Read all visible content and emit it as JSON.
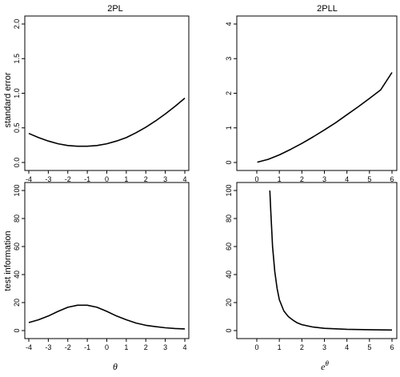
{
  "figure": {
    "columns": [
      "2PL",
      "2PLL"
    ],
    "rows": [
      "standard error",
      "test information"
    ],
    "xlabels": [
      {
        "base": "θ",
        "sup": ""
      },
      {
        "base": "e",
        "sup": "θ"
      }
    ]
  },
  "chart_data": [
    {
      "type": "line",
      "column": "2PL",
      "row": "standard error",
      "title": "2PL",
      "ylabel": "standard error",
      "xlabel": "θ",
      "xlim": [
        -4,
        4
      ],
      "ylim": [
        0,
        2
      ],
      "xticks": [
        -4,
        -3,
        -2,
        -1,
        0,
        1,
        2,
        3,
        4
      ],
      "yticks": [
        0.0,
        0.5,
        1.0,
        1.5,
        2.0
      ],
      "ytick_labels": [
        "0.0",
        "0.5",
        "1.0",
        "1.5",
        "2.0"
      ],
      "series": [
        {
          "x": [
            -4,
            -3.5,
            -3,
            -2.5,
            -2,
            -1.5,
            -1,
            -0.5,
            0,
            0.5,
            1,
            1.5,
            2,
            2.5,
            3,
            3.5,
            4
          ],
          "y": [
            0.42,
            0.36,
            0.31,
            0.27,
            0.245,
            0.235,
            0.235,
            0.245,
            0.27,
            0.31,
            0.36,
            0.43,
            0.51,
            0.6,
            0.7,
            0.81,
            0.93
          ]
        }
      ]
    },
    {
      "type": "line",
      "column": "2PLL",
      "row": "standard error",
      "title": "2PLL",
      "ylabel": "",
      "xlabel": "e^θ",
      "xlim": [
        0,
        6
      ],
      "ylim": [
        0,
        4
      ],
      "xticks": [
        0,
        1,
        2,
        3,
        4,
        5,
        6
      ],
      "yticks": [
        0,
        1,
        2,
        3,
        4
      ],
      "ytick_labels": [
        "0",
        "1",
        "2",
        "3",
        "4"
      ],
      "series": [
        {
          "x": [
            0.02,
            0.5,
            1,
            1.5,
            2,
            2.5,
            3,
            3.5,
            4,
            4.5,
            5,
            5.5,
            6
          ],
          "y": [
            0.01,
            0.09,
            0.22,
            0.38,
            0.55,
            0.74,
            0.94,
            1.15,
            1.38,
            1.61,
            1.85,
            2.1,
            2.6
          ]
        }
      ]
    },
    {
      "type": "line",
      "column": "2PL",
      "row": "test information",
      "title": "",
      "ylabel": "test information",
      "xlabel": "θ",
      "xlim": [
        -4,
        4
      ],
      "ylim": [
        0,
        100
      ],
      "xticks": [
        -4,
        -3,
        -2,
        -1,
        0,
        1,
        2,
        3,
        4
      ],
      "yticks": [
        0,
        20,
        40,
        60,
        80,
        100
      ],
      "ytick_labels": [
        "0",
        "20",
        "40",
        "60",
        "80",
        "100"
      ],
      "series": [
        {
          "x": [
            -4,
            -3.5,
            -3,
            -2.5,
            -2,
            -1.5,
            -1,
            -0.5,
            0,
            0.5,
            1,
            1.5,
            2,
            2.5,
            3,
            3.5,
            4
          ],
          "y": [
            5.7,
            7.7,
            10.4,
            13.7,
            16.6,
            18.1,
            18.1,
            16.6,
            13.7,
            10.4,
            7.7,
            5.4,
            3.8,
            2.8,
            2.0,
            1.5,
            1.2
          ]
        }
      ]
    },
    {
      "type": "line",
      "column": "2PLL",
      "row": "test information",
      "title": "",
      "ylabel": "",
      "xlabel": "e^θ",
      "xlim": [
        0,
        6
      ],
      "ylim": [
        0,
        100
      ],
      "xticks": [
        0,
        1,
        2,
        3,
        4,
        5,
        6
      ],
      "yticks": [
        0,
        20,
        40,
        60,
        80,
        100
      ],
      "ytick_labels": [
        "0",
        "20",
        "40",
        "60",
        "80",
        "100"
      ],
      "series": [
        {
          "x": [
            0.58,
            0.62,
            0.7,
            0.8,
            0.9,
            1.0,
            1.2,
            1.4,
            1.6,
            1.8,
            2.0,
            2.5,
            3,
            4,
            5,
            6
          ],
          "y": [
            100,
            85,
            60,
            42,
            30,
            22,
            14,
            10,
            7.5,
            5.5,
            4.2,
            2.5,
            1.6,
            0.9,
            0.6,
            0.4
          ]
        }
      ]
    }
  ]
}
